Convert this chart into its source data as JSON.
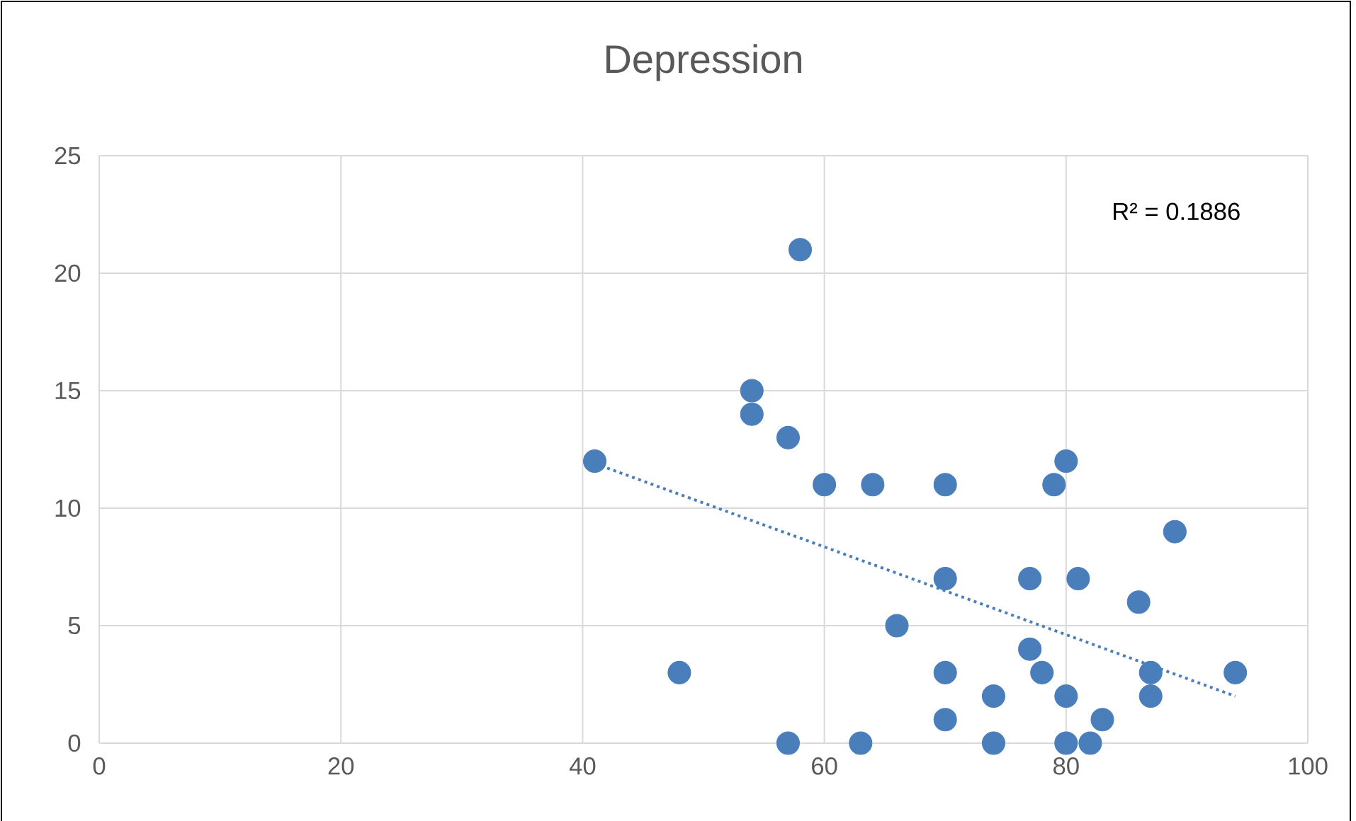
{
  "chart_data": {
    "type": "scatter",
    "title": "Depression",
    "x": [
      41,
      48,
      54,
      54,
      57,
      57,
      58,
      60,
      63,
      64,
      66,
      70,
      70,
      70,
      70,
      74,
      74,
      77,
      77,
      78,
      79,
      80,
      80,
      80,
      81,
      82,
      83,
      86,
      87,
      87,
      89,
      94
    ],
    "series": [
      {
        "color": "#4a7ebb",
        "marker": "circle",
        "values": [
          12,
          3,
          15,
          14,
          13,
          0,
          21,
          11,
          0,
          11,
          5,
          11,
          7,
          3,
          1,
          2,
          0,
          7,
          4,
          3,
          11,
          12,
          2,
          0,
          7,
          0,
          1,
          6,
          3,
          2,
          9,
          3
        ]
      },
      {
        "type": "line",
        "color": "#4a7ebb",
        "line_style": "dotted",
        "marker": "none",
        "x": [
          41,
          94
        ],
        "values": [
          11.9,
          2.0
        ]
      }
    ],
    "xlim": [
      0,
      100
    ],
    "ylim": [
      0,
      25
    ],
    "xticks": [
      0,
      20,
      40,
      60,
      80,
      100
    ],
    "yticks": [
      0,
      5,
      10,
      15,
      20,
      25
    ],
    "grid": true,
    "annotations": [
      "R² = 0.1886"
    ]
  }
}
